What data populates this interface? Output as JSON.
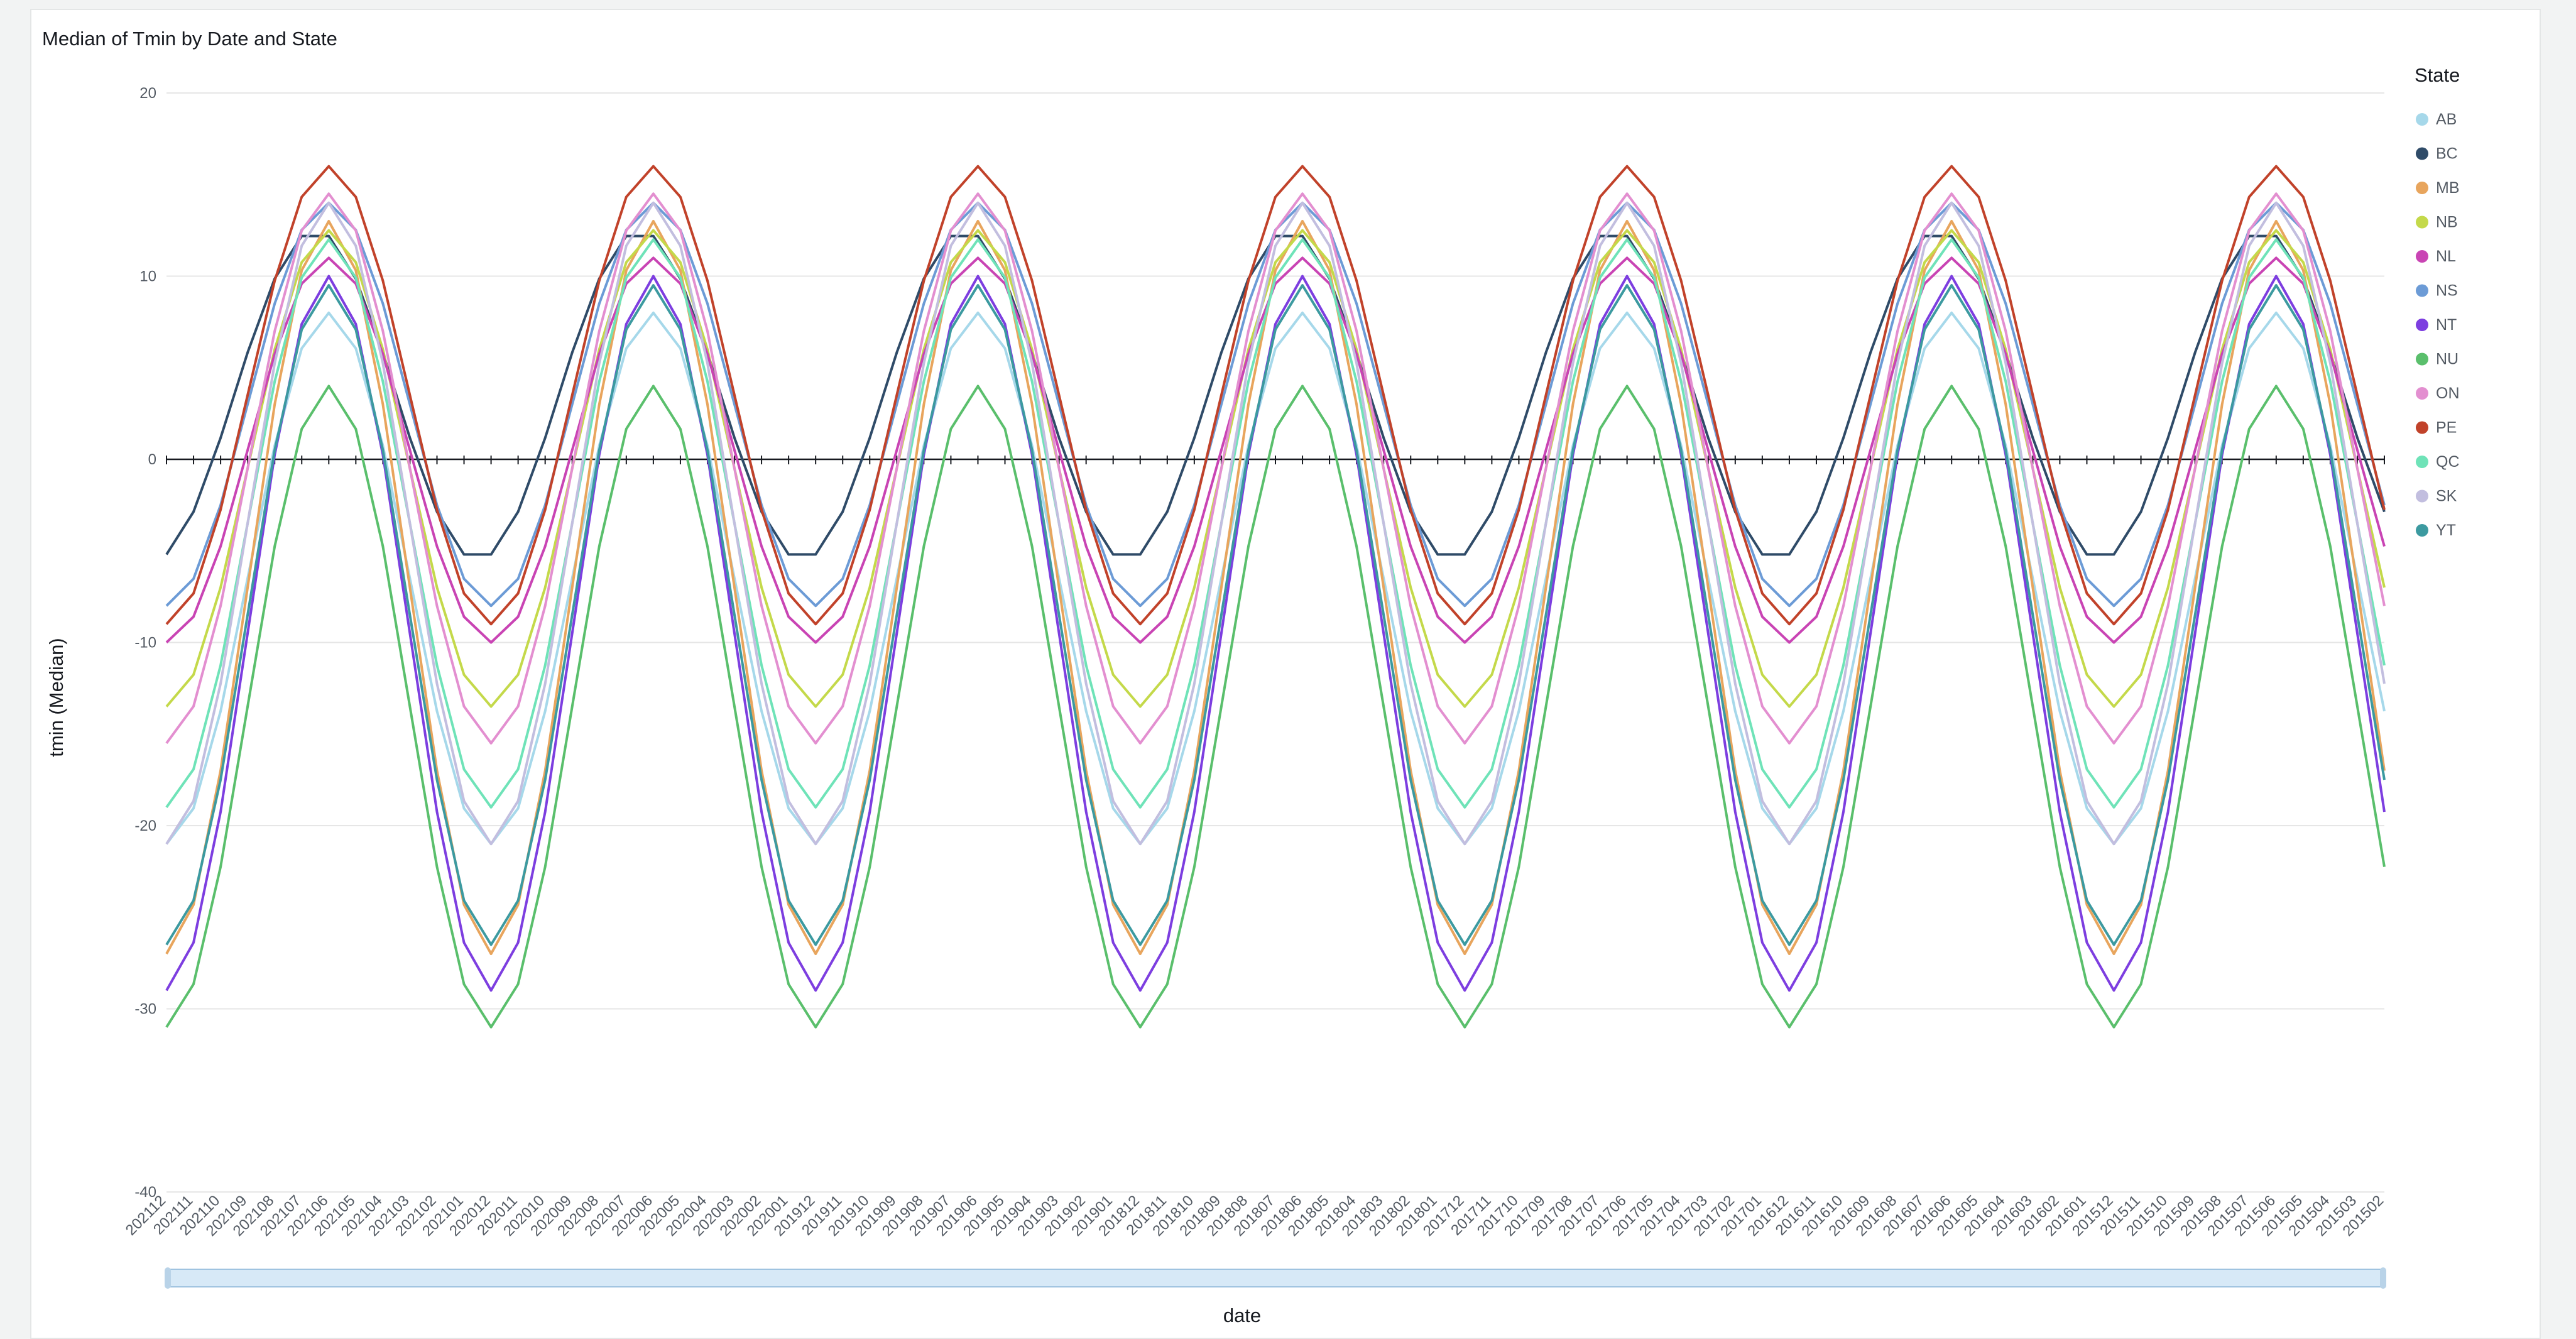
{
  "chart_data": {
    "type": "line",
    "title": "Median of Tmin by Date and State",
    "xlabel": "date",
    "ylabel": "tmin (Median)",
    "ylim": [
      -40,
      20
    ],
    "yticks": [
      20,
      10,
      0,
      -10,
      -20,
      -30,
      -40
    ],
    "grid": "horizontal",
    "legend_title": "State",
    "legend_position": "right",
    "categories": [
      "202112",
      "202111",
      "202110",
      "202109",
      "202108",
      "202107",
      "202106",
      "202105",
      "202104",
      "202103",
      "202102",
      "202101",
      "202012",
      "202011",
      "202010",
      "202009",
      "202008",
      "202007",
      "202006",
      "202005",
      "202004",
      "202003",
      "202002",
      "202001",
      "201912",
      "201911",
      "201910",
      "201909",
      "201908",
      "201907",
      "201906",
      "201905",
      "201904",
      "201903",
      "201902",
      "201901",
      "201812",
      "201811",
      "201810",
      "201809",
      "201808",
      "201807",
      "201806",
      "201805",
      "201804",
      "201803",
      "201802",
      "201801",
      "201712",
      "201711",
      "201710",
      "201709",
      "201708",
      "201707",
      "201706",
      "201705",
      "201704",
      "201703",
      "201702",
      "201701",
      "201612",
      "201611",
      "201610",
      "201609",
      "201608",
      "201607",
      "201606",
      "201605",
      "201604",
      "201603",
      "201602",
      "201601",
      "201512",
      "201511",
      "201510",
      "201509",
      "201508",
      "201507",
      "201506",
      "201505",
      "201504",
      "201503",
      "201502"
    ],
    "series": [
      {
        "name": "AB",
        "color": "#a6d8ea",
        "base": -6.5,
        "amp": -14.5,
        "phase": 0.0
      },
      {
        "name": "BC",
        "color": "#2f4b68",
        "base": 3.5,
        "amp": -9.0,
        "phase": 0.5
      },
      {
        "name": "MB",
        "color": "#e8a55d",
        "base": -7.0,
        "amp": -20.0,
        "phase": 0.0
      },
      {
        "name": "NB",
        "color": "#c4d94a",
        "base": -0.5,
        "amp": -13.0,
        "phase": 0.0
      },
      {
        "name": "NL",
        "color": "#c944b4",
        "base": 0.5,
        "amp": -10.5,
        "phase": 0.0
      },
      {
        "name": "NS",
        "color": "#6c9bd6",
        "base": 3.0,
        "amp": -11.0,
        "phase": 0.0
      },
      {
        "name": "NT",
        "color": "#7d3ee0",
        "base": -9.5,
        "amp": -19.5,
        "phase": 0.0
      },
      {
        "name": "NU",
        "color": "#5abf6c",
        "base": -13.5,
        "amp": -17.5,
        "phase": 0.0
      },
      {
        "name": "ON",
        "color": "#e38fd0",
        "base": -0.5,
        "amp": -15.0,
        "phase": 0.0
      },
      {
        "name": "PE",
        "color": "#c1422a",
        "base": 3.5,
        "amp": -12.5,
        "phase": 0.0
      },
      {
        "name": "QC",
        "color": "#6fe3b8",
        "base": -3.5,
        "amp": -15.5,
        "phase": 0.0
      },
      {
        "name": "SK",
        "color": "#c2bedf",
        "base": -3.5,
        "amp": -17.5,
        "phase": 0.0
      },
      {
        "name": "YT",
        "color": "#3c9aa0",
        "base": -8.5,
        "amp": -18.0,
        "phase": 0.0
      }
    ]
  }
}
